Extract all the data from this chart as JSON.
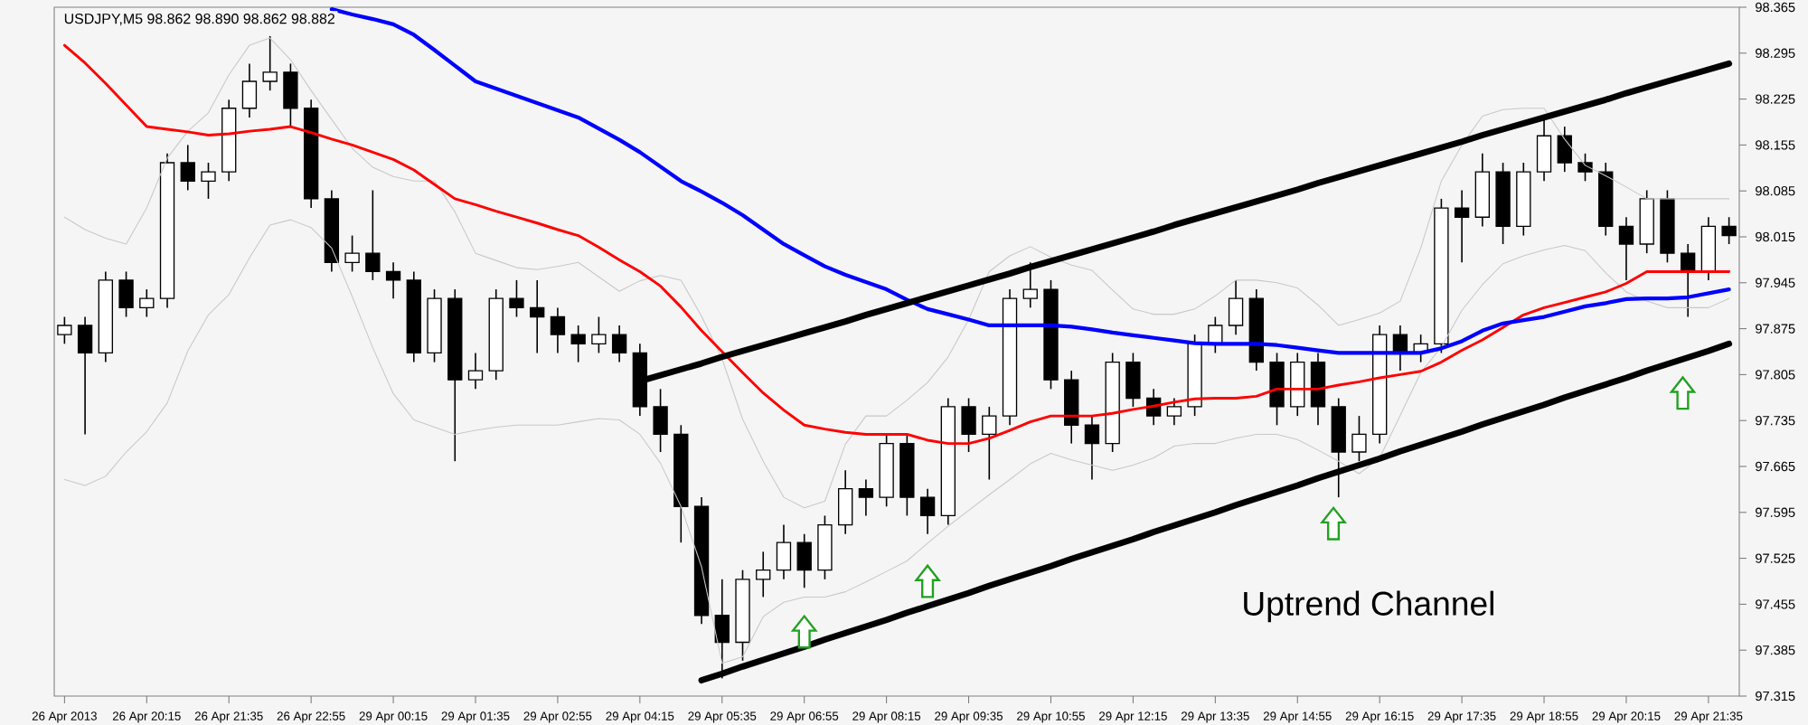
{
  "chart_data": {
    "type": "candlestick",
    "title": "USDJPY,M5  98.862 98.890 98.862 98.882",
    "annotations": [
      "Uptrend Channel"
    ],
    "categories": [
      "26 Apr 2013",
      null,
      null,
      null,
      "26 Apr 20:15",
      null,
      null,
      null,
      "26 Apr 21:35",
      null,
      null,
      null,
      "26 Apr 22:55",
      null,
      null,
      null,
      "29 Apr 00:15",
      null,
      null,
      null,
      "29 Apr 01:35",
      null,
      null,
      null,
      "29 Apr 02:55",
      null,
      null,
      null,
      "29 Apr 04:15",
      null,
      null,
      null,
      "29 Apr 05:35",
      null,
      null,
      null,
      "29 Apr 06:55",
      null,
      null,
      null,
      "29 Apr 08:15",
      null,
      null,
      null,
      "29 Apr 09:35",
      null,
      null,
      null,
      "29 Apr 10:55",
      null,
      null,
      null,
      "29 Apr 12:15",
      null,
      null,
      null,
      "29 Apr 13:35",
      null,
      null,
      null,
      "29 Apr 14:55",
      null,
      null,
      null,
      "29 Apr 16:15",
      null,
      null,
      null,
      "29 Apr 17:35",
      null,
      null,
      null,
      "29 Apr 18:55",
      null,
      null,
      null,
      "29 Apr 20:15",
      null,
      null,
      null,
      "29 Apr 21:35",
      null
    ],
    "ohlc": [
      [
        97.866,
        97.893,
        97.852,
        97.88
      ],
      [
        97.88,
        97.893,
        97.714,
        97.838
      ],
      [
        97.838,
        97.962,
        97.824,
        97.949
      ],
      [
        97.949,
        97.962,
        97.893,
        97.907
      ],
      [
        97.907,
        97.935,
        97.893,
        97.921
      ],
      [
        97.921,
        98.142,
        97.907,
        98.128
      ],
      [
        98.128,
        98.155,
        98.086,
        98.1
      ],
      [
        98.1,
        98.128,
        98.073,
        98.114
      ],
      [
        98.114,
        98.224,
        98.1,
        98.211
      ],
      [
        98.211,
        98.279,
        98.197,
        98.252
      ],
      [
        98.252,
        98.321,
        98.238,
        98.266
      ],
      [
        98.266,
        98.279,
        98.183,
        98.211
      ],
      [
        98.211,
        98.224,
        98.059,
        98.073
      ],
      [
        98.073,
        98.086,
        97.962,
        97.976
      ],
      [
        97.976,
        98.017,
        97.962,
        97.99
      ],
      [
        97.99,
        98.086,
        97.949,
        97.962
      ],
      [
        97.962,
        97.976,
        97.921,
        97.949
      ],
      [
        97.949,
        97.962,
        97.824,
        97.838
      ],
      [
        97.838,
        97.935,
        97.824,
        97.921
      ],
      [
        97.921,
        97.935,
        97.673,
        97.797
      ],
      [
        97.797,
        97.838,
        97.783,
        97.811
      ],
      [
        97.811,
        97.935,
        97.797,
        97.921
      ],
      [
        97.921,
        97.949,
        97.893,
        97.907
      ],
      [
        97.907,
        97.949,
        97.838,
        97.893
      ],
      [
        97.893,
        97.907,
        97.838,
        97.866
      ],
      [
        97.866,
        97.88,
        97.824,
        97.852
      ],
      [
        97.852,
        97.893,
        97.838,
        97.866
      ],
      [
        97.866,
        97.88,
        97.824,
        97.838
      ],
      [
        97.838,
        97.852,
        97.742,
        97.756
      ],
      [
        97.756,
        97.783,
        97.687,
        97.714
      ],
      [
        97.714,
        97.728,
        97.549,
        97.604
      ],
      [
        97.604,
        97.618,
        97.425,
        97.438
      ],
      [
        97.438,
        97.493,
        97.342,
        97.397
      ],
      [
        97.397,
        97.507,
        97.369,
        97.493
      ],
      [
        97.493,
        97.535,
        97.466,
        97.507
      ],
      [
        97.507,
        97.576,
        97.493,
        97.549
      ],
      [
        97.549,
        97.562,
        97.48,
        97.507
      ],
      [
        97.507,
        97.59,
        97.493,
        97.576
      ],
      [
        97.576,
        97.659,
        97.562,
        97.631
      ],
      [
        97.631,
        97.645,
        97.59,
        97.618
      ],
      [
        97.618,
        97.714,
        97.604,
        97.7
      ],
      [
        97.7,
        97.714,
        97.59,
        97.618
      ],
      [
        97.618,
        97.631,
        97.562,
        97.59
      ],
      [
        97.59,
        97.769,
        97.576,
        97.756
      ],
      [
        97.756,
        97.769,
        97.687,
        97.714
      ],
      [
        97.714,
        97.756,
        97.645,
        97.742
      ],
      [
        97.742,
        97.935,
        97.728,
        97.921
      ],
      [
        97.921,
        97.976,
        97.907,
        97.935
      ],
      [
        97.935,
        97.949,
        97.783,
        97.797
      ],
      [
        97.797,
        97.811,
        97.7,
        97.728
      ],
      [
        97.728,
        97.742,
        97.645,
        97.7
      ],
      [
        97.7,
        97.838,
        97.687,
        97.824
      ],
      [
        97.824,
        97.838,
        97.756,
        97.769
      ],
      [
        97.769,
        97.783,
        97.728,
        97.742
      ],
      [
        97.742,
        97.769,
        97.728,
        97.756
      ],
      [
        97.756,
        97.866,
        97.742,
        97.852
      ],
      [
        97.852,
        97.893,
        97.838,
        97.88
      ],
      [
        97.88,
        97.949,
        97.866,
        97.921
      ],
      [
        97.921,
        97.935,
        97.811,
        97.824
      ],
      [
        97.824,
        97.838,
        97.728,
        97.756
      ],
      [
        97.756,
        97.838,
        97.742,
        97.824
      ],
      [
        97.824,
        97.838,
        97.728,
        97.756
      ],
      [
        97.756,
        97.769,
        97.618,
        97.687
      ],
      [
        97.687,
        97.742,
        97.673,
        97.714
      ],
      [
        97.714,
        97.88,
        97.7,
        97.866
      ],
      [
        97.866,
        97.88,
        97.811,
        97.838
      ],
      [
        97.838,
        97.866,
        97.824,
        97.852
      ],
      [
        97.852,
        98.073,
        97.838,
        98.059
      ],
      [
        98.059,
        98.086,
        97.976,
        98.045
      ],
      [
        98.045,
        98.142,
        98.031,
        98.114
      ],
      [
        98.114,
        98.128,
        98.004,
        98.031
      ],
      [
        98.031,
        98.128,
        98.017,
        98.114
      ],
      [
        98.114,
        98.197,
        98.1,
        98.169
      ],
      [
        98.169,
        98.183,
        98.114,
        98.128
      ],
      [
        98.128,
        98.142,
        98.1,
        98.114
      ],
      [
        98.114,
        98.128,
        98.017,
        98.031
      ],
      [
        98.031,
        98.045,
        97.949,
        98.004
      ],
      [
        98.004,
        98.086,
        97.99,
        98.073
      ],
      [
        98.073,
        98.086,
        97.976,
        97.99
      ],
      [
        97.99,
        98.004,
        97.893,
        97.962
      ],
      [
        97.962,
        98.045,
        97.949,
        98.031
      ],
      [
        98.031,
        98.045,
        98.004,
        98.017
      ]
    ],
    "series": [
      {
        "type": "line",
        "color": "#c8c8c8",
        "values": [
          98.045,
          98.026,
          98.013,
          98.004,
          98.059,
          98.135,
          98.176,
          98.204,
          98.262,
          98.307,
          98.318,
          98.285,
          98.238,
          98.194,
          98.15,
          98.121,
          98.107,
          98.1,
          98.1,
          98.053,
          97.99,
          97.979,
          97.968,
          97.965,
          97.97,
          97.976,
          97.954,
          97.932,
          97.948,
          97.956,
          97.949,
          97.894,
          97.829,
          97.737,
          97.673,
          97.618,
          97.602,
          97.612,
          97.699,
          97.742,
          97.742,
          97.766,
          97.793,
          97.832,
          97.889,
          97.962,
          97.986,
          98.0,
          97.984,
          97.972,
          97.964,
          97.934,
          97.905,
          97.897,
          97.897,
          97.905,
          97.925,
          97.949,
          97.949,
          97.945,
          97.937,
          97.911,
          97.88,
          97.889,
          97.899,
          97.917,
          97.998,
          98.1,
          98.155,
          98.199,
          98.209,
          98.211,
          98.211,
          98.164,
          98.124,
          98.108,
          98.091,
          98.073,
          98.073,
          98.073,
          98.073,
          98.073
        ]
      },
      {
        "type": "line",
        "color": "#c8c8c8",
        "values": [
          97.645,
          97.636,
          97.65,
          97.687,
          97.718,
          97.762,
          97.841,
          97.896,
          97.927,
          97.983,
          98.033,
          98.041,
          98.029,
          97.998,
          97.924,
          97.846,
          97.776,
          97.736,
          97.725,
          97.714,
          97.72,
          97.725,
          97.728,
          97.728,
          97.728,
          97.733,
          97.738,
          97.736,
          97.714,
          97.67,
          97.604,
          97.512,
          97.365,
          97.375,
          97.436,
          97.458,
          97.466,
          97.466,
          97.474,
          97.489,
          97.505,
          97.521,
          97.548,
          97.574,
          97.598,
          97.622,
          97.645,
          97.669,
          97.685,
          97.675,
          97.667,
          97.659,
          97.667,
          97.678,
          97.696,
          97.7,
          97.7,
          97.708,
          97.714,
          97.714,
          97.706,
          97.69,
          97.673,
          97.654,
          97.678,
          97.743,
          97.808,
          97.847,
          97.903,
          97.942,
          97.974,
          97.986,
          97.995,
          98.002,
          97.994,
          97.96,
          97.931,
          97.917,
          97.907,
          97.907,
          97.907,
          97.921
        ]
      },
      {
        "type": "line",
        "color": "#ff0000",
        "values": [
          98.307,
          98.28,
          98.249,
          98.216,
          98.183,
          98.179,
          98.175,
          98.17,
          98.172,
          98.176,
          98.179,
          98.183,
          98.174,
          98.164,
          98.155,
          98.144,
          98.133,
          98.117,
          98.095,
          98.073,
          98.064,
          98.054,
          98.045,
          98.036,
          98.026,
          98.017,
          97.999,
          97.98,
          97.962,
          97.94,
          97.908,
          97.872,
          97.84,
          97.808,
          97.777,
          97.751,
          97.728,
          97.722,
          97.717,
          97.714,
          97.714,
          97.714,
          97.705,
          97.7,
          97.7,
          97.708,
          97.72,
          97.733,
          97.742,
          97.742,
          97.742,
          97.746,
          97.752,
          97.757,
          97.763,
          97.768,
          97.769,
          97.769,
          97.772,
          97.783,
          97.783,
          97.783,
          97.789,
          97.794,
          97.8,
          97.805,
          97.81,
          97.824,
          97.842,
          97.858,
          97.877,
          97.896,
          97.907,
          97.915,
          97.923,
          97.931,
          97.944,
          97.962,
          97.962,
          97.962,
          97.962,
          97.962
        ]
      },
      {
        "type": "line",
        "color": "#0000ff",
        "values": [
          null,
          null,
          null,
          null,
          null,
          null,
          null,
          null,
          null,
          null,
          null,
          null,
          null,
          98.362,
          98.354,
          98.347,
          98.339,
          98.323,
          98.3,
          98.276,
          98.252,
          98.241,
          98.23,
          98.219,
          98.208,
          98.197,
          98.18,
          98.163,
          98.144,
          98.122,
          98.1,
          98.084,
          98.067,
          98.048,
          98.026,
          98.004,
          97.987,
          97.97,
          97.957,
          97.946,
          97.935,
          97.919,
          97.905,
          97.897,
          97.889,
          97.88,
          97.88,
          97.88,
          97.88,
          97.878,
          97.874,
          97.869,
          97.865,
          97.861,
          97.857,
          97.853,
          97.852,
          97.852,
          97.852,
          97.85,
          97.846,
          97.842,
          97.838,
          97.838,
          97.838,
          97.838,
          97.838,
          97.845,
          97.856,
          97.872,
          97.883,
          97.888,
          97.893,
          97.901,
          97.909,
          97.914,
          97.92,
          97.921,
          97.921,
          97.923,
          97.929,
          97.935
        ]
      },
      {
        "type": "line",
        "color": "#000000",
        "values": [
          null,
          null,
          null,
          null,
          null,
          null,
          null,
          null,
          null,
          null,
          null,
          null,
          null,
          null,
          null,
          null,
          null,
          null,
          null,
          null,
          null,
          null,
          null,
          null,
          null,
          null,
          null,
          null,
          97.795,
          97.804,
          97.813,
          97.822,
          97.832,
          97.841,
          97.85,
          97.859,
          97.868,
          97.877,
          97.886,
          97.896,
          97.905,
          97.914,
          97.923,
          97.932,
          97.941,
          97.95,
          97.959,
          97.969,
          97.978,
          97.987,
          97.996,
          98.005,
          98.014,
          98.023,
          98.033,
          98.042,
          98.051,
          98.06,
          98.069,
          98.078,
          98.087,
          98.097,
          98.106,
          98.115,
          98.124,
          98.133,
          98.142,
          98.151,
          98.16,
          98.17,
          98.179,
          98.188,
          98.197,
          98.206,
          98.215,
          98.224,
          98.234,
          98.243,
          98.252,
          98.261,
          98.27,
          98.279
        ]
      },
      {
        "type": "line",
        "color": "#000000",
        "values": [
          null,
          null,
          null,
          null,
          null,
          null,
          null,
          null,
          null,
          null,
          null,
          null,
          null,
          null,
          null,
          null,
          null,
          null,
          null,
          null,
          null,
          null,
          null,
          null,
          null,
          null,
          null,
          null,
          null,
          null,
          null,
          97.339,
          97.349,
          97.36,
          97.37,
          97.38,
          97.39,
          97.401,
          97.411,
          97.421,
          97.431,
          97.442,
          97.452,
          97.462,
          97.472,
          97.483,
          97.493,
          97.503,
          97.513,
          97.524,
          97.534,
          97.544,
          97.554,
          97.565,
          97.575,
          97.585,
          97.595,
          97.606,
          97.616,
          97.626,
          97.636,
          97.647,
          97.657,
          97.667,
          97.677,
          97.688,
          97.698,
          97.708,
          97.718,
          97.729,
          97.739,
          97.749,
          97.759,
          97.77,
          97.78,
          97.79,
          97.8,
          97.811,
          97.821,
          97.831,
          97.841,
          97.852
        ]
      }
    ],
    "ylim": [
      97.315,
      98.365
    ],
    "yticks": [
      98.365,
      98.295,
      98.225,
      98.155,
      98.085,
      98.015,
      97.945,
      97.875,
      97.805,
      97.735,
      97.665,
      97.595,
      97.525,
      97.455,
      97.385,
      97.315
    ]
  }
}
